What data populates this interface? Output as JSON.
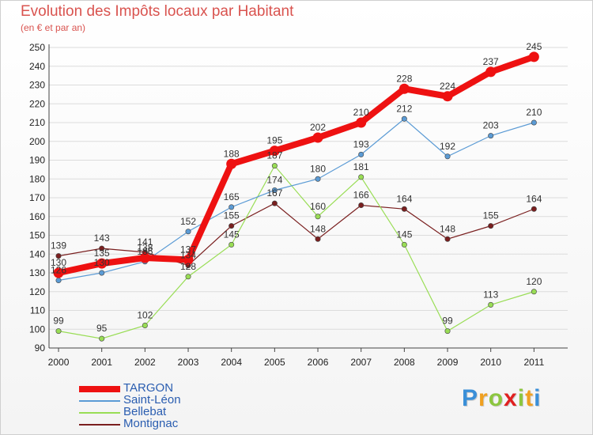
{
  "chart_data": {
    "type": "line",
    "title": "Evolution des Impôts locaux par Habitant",
    "subtitle": "(en € et par an)",
    "categories": [
      "2000",
      "2001",
      "2002",
      "2003",
      "2004",
      "2005",
      "2006",
      "2007",
      "2008",
      "2009",
      "2010",
      "2011"
    ],
    "ylim": [
      90,
      250
    ],
    "yticks": [
      90,
      100,
      110,
      120,
      130,
      140,
      150,
      160,
      170,
      180,
      190,
      200,
      210,
      220,
      230,
      240,
      250
    ],
    "series": [
      {
        "name": "TARGON",
        "color": "#ee1111",
        "values": [
          130,
          135,
          138,
          137,
          188,
          195,
          202,
          210,
          228,
          224,
          237,
          245
        ]
      },
      {
        "name": "Saint-Léon",
        "color": "#5b9bd5",
        "values": [
          126,
          130,
          136,
          152,
          165,
          174,
          180,
          193,
          212,
          192,
          203,
          210
        ]
      },
      {
        "name": "Bellebat",
        "color": "#99dd55",
        "values": [
          99,
          95,
          102,
          128,
          145,
          187,
          160,
          181,
          145,
          99,
          113,
          120
        ]
      },
      {
        "name": "Montignac",
        "color": "#7a1f1f",
        "values": [
          139,
          143,
          141,
          134,
          155,
          167,
          148,
          166,
          164,
          148,
          155,
          164
        ]
      }
    ],
    "legend_position": "bottom-left"
  },
  "brand": {
    "letters": [
      "P",
      "r",
      "o",
      "x",
      "i",
      "t",
      "i"
    ],
    "colors": [
      "#3a8fd8",
      "#f0a020",
      "#8cc63f",
      "#e02020",
      "#8cc63f",
      "#f0a020",
      "#3a8fd8"
    ]
  }
}
